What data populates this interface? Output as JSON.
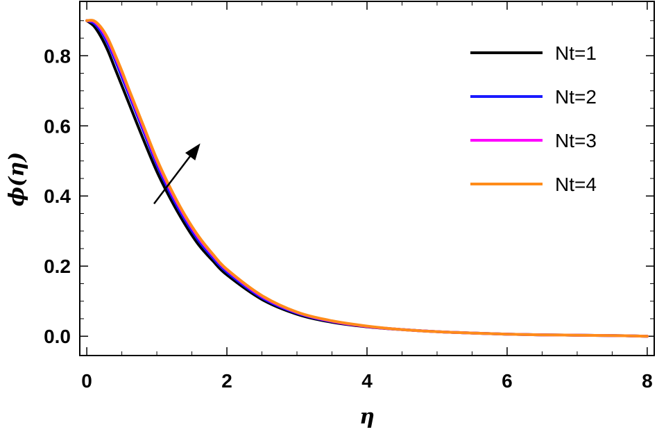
{
  "chart_data": {
    "type": "line",
    "title": "",
    "xlabel": "η",
    "ylabel": "ϕ(η)",
    "xlim": [
      -0.1,
      8.1
    ],
    "ylim": [
      -0.055,
      0.955
    ],
    "xticks": [
      0,
      2,
      4,
      6,
      8
    ],
    "xtick_labels": [
      "0",
      "2",
      "4",
      "6",
      "8"
    ],
    "yticks": [
      0.0,
      0.2,
      0.4,
      0.6,
      0.8
    ],
    "ytick_labels": [
      "0.0",
      "0.2",
      "0.4",
      "0.6",
      "0.8"
    ],
    "grid": false,
    "legend_position": "top-right",
    "annotation": "arrow pointing in the direction of increasing Nt",
    "x": [
      0,
      0.1,
      0.2,
      0.3,
      0.4,
      0.5,
      0.6,
      0.8,
      1.0,
      1.2,
      1.4,
      1.6,
      1.8,
      2.0,
      2.5,
      3.0,
      3.5,
      4.0,
      4.5,
      5.0,
      5.5,
      6.0,
      6.5,
      7.0,
      7.5,
      8.0
    ],
    "series": [
      {
        "name": "Nt=1",
        "color": "#000000",
        "values": [
          0.9,
          0.885,
          0.855,
          0.815,
          0.765,
          0.715,
          0.665,
          0.565,
          0.47,
          0.39,
          0.32,
          0.26,
          0.215,
          0.175,
          0.105,
          0.063,
          0.04,
          0.027,
          0.019,
          0.013,
          0.009,
          0.006,
          0.004,
          0.003,
          0.002,
          0.0
        ]
      },
      {
        "name": "Nt=2",
        "color": "#1a1aff",
        "values": [
          0.9,
          0.893,
          0.87,
          0.835,
          0.79,
          0.74,
          0.69,
          0.59,
          0.49,
          0.405,
          0.333,
          0.272,
          0.224,
          0.183,
          0.11,
          0.066,
          0.042,
          0.028,
          0.019,
          0.013,
          0.009,
          0.006,
          0.004,
          0.003,
          0.002,
          0.0
        ]
      },
      {
        "name": "Nt=3",
        "color": "#ff00ff",
        "values": [
          0.9,
          0.898,
          0.878,
          0.845,
          0.8,
          0.752,
          0.7,
          0.6,
          0.5,
          0.415,
          0.342,
          0.28,
          0.231,
          0.189,
          0.114,
          0.068,
          0.043,
          0.028,
          0.019,
          0.013,
          0.009,
          0.006,
          0.004,
          0.003,
          0.002,
          0.0
        ]
      },
      {
        "name": "Nt=4",
        "color": "#ff8c1a",
        "values": [
          0.9,
          0.9,
          0.882,
          0.85,
          0.805,
          0.757,
          0.705,
          0.605,
          0.505,
          0.42,
          0.346,
          0.284,
          0.234,
          0.191,
          0.116,
          0.069,
          0.044,
          0.029,
          0.019,
          0.013,
          0.009,
          0.006,
          0.004,
          0.003,
          0.002,
          0.0
        ]
      }
    ]
  }
}
